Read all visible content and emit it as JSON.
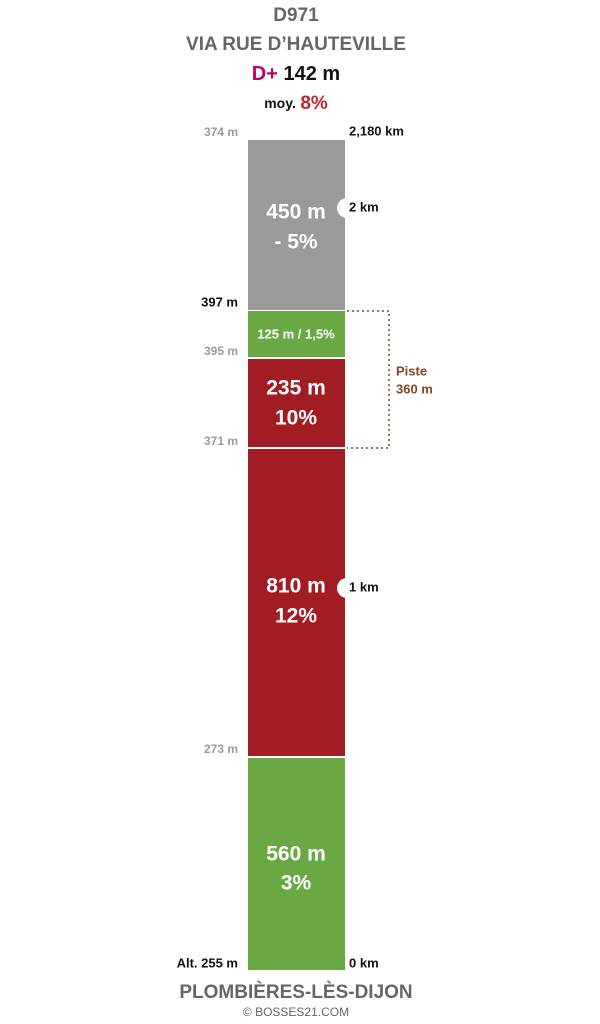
{
  "header": {
    "road": "D971",
    "route": "VIA RUE D’HAUTEVILLE",
    "gain_label": "D+",
    "gain": "142 m",
    "avg_label": "moy.",
    "avg": "8%"
  },
  "segments": [
    {
      "length": "450 m",
      "grade": "- 5%"
    },
    {
      "label": "125 m / 1,5%"
    },
    {
      "length": "235 m",
      "grade": "10%"
    },
    {
      "length": "810 m",
      "grade": "12%"
    },
    {
      "length": "560 m",
      "grade": "3%"
    }
  ],
  "altitudes": [
    "374 m",
    "397 m",
    "395 m",
    "371 m",
    "273 m",
    "Alt. 255 m"
  ],
  "distances": [
    "2,180 km",
    "2 km",
    "1 km",
    "0 km"
  ],
  "piste": {
    "label": "Piste",
    "length": "360 m"
  },
  "footer": {
    "place": "PLOMBIÈRES-LÈS-DIJON",
    "credit": "© BOSSES21.COM"
  }
}
